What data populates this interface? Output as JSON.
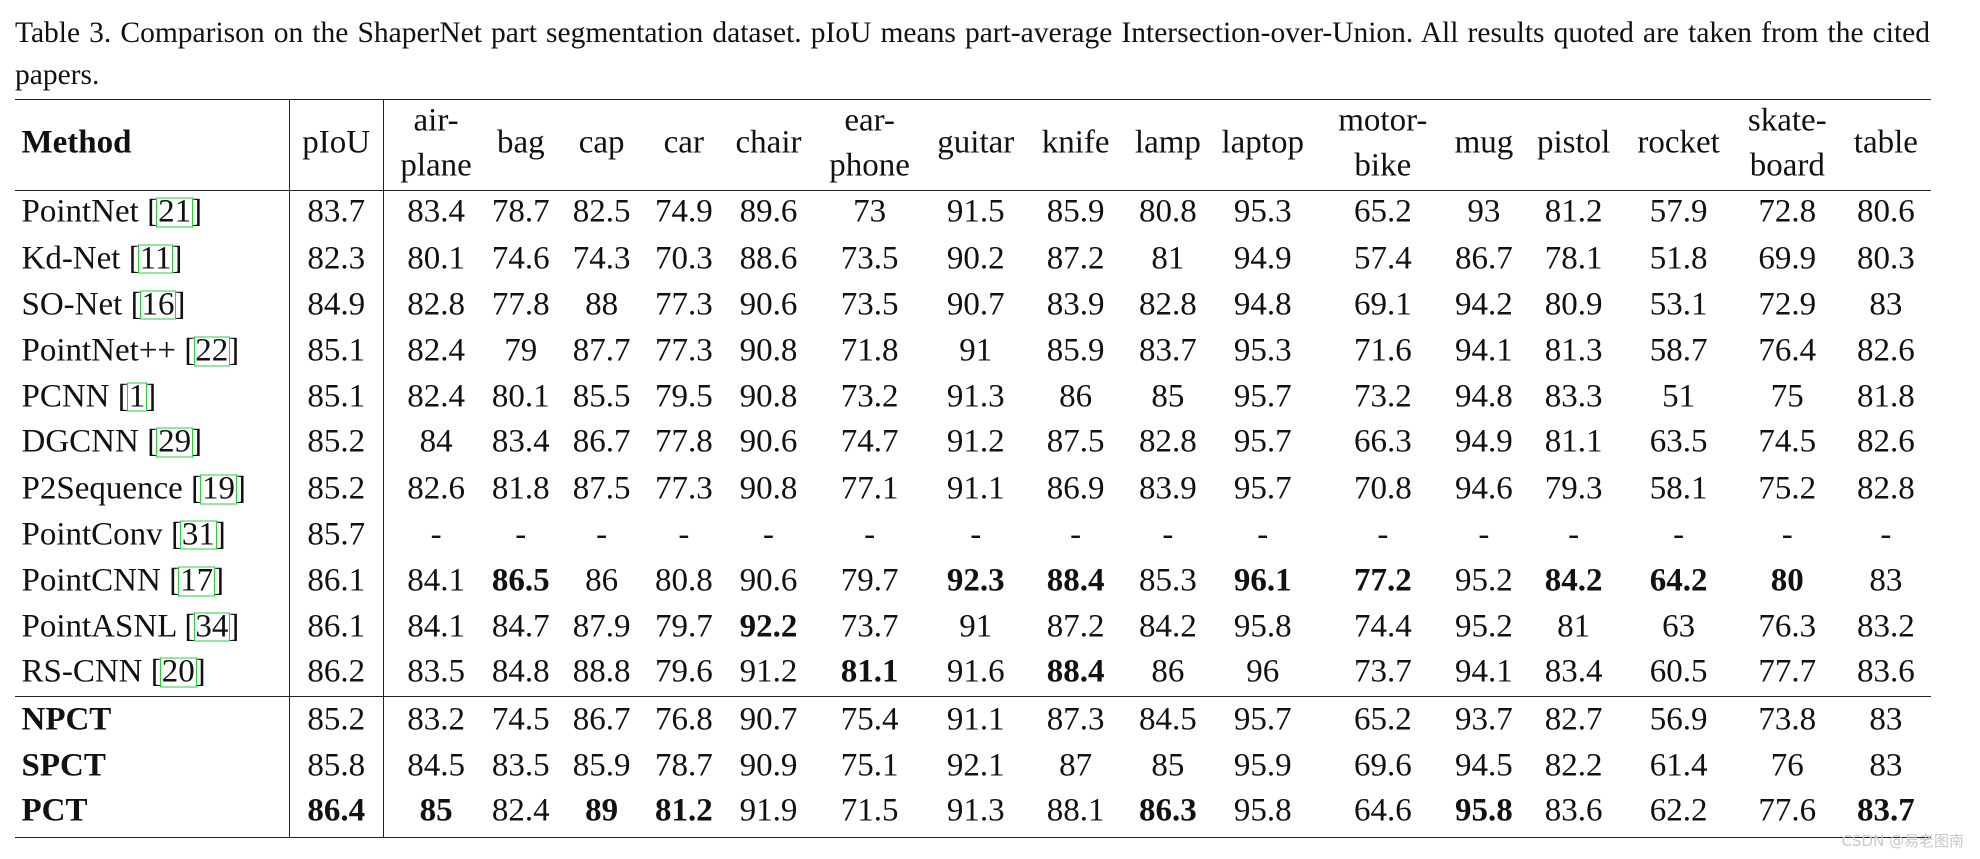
{
  "caption": "Table 3. Comparison on the ShaperNet part segmentation dataset. pIoU means part-average Intersection-over-Union. All results quoted are taken from the cited papers.",
  "table": {
    "header": [
      [
        "Method"
      ],
      [
        "pIoU"
      ],
      [
        "air-",
        "plane"
      ],
      [
        "bag"
      ],
      [
        "cap"
      ],
      [
        "car"
      ],
      [
        "chair"
      ],
      [
        "ear-",
        "phone"
      ],
      [
        "guitar"
      ],
      [
        "knife"
      ],
      [
        "lamp"
      ],
      [
        "laptop"
      ],
      [
        "motor-",
        "bike"
      ],
      [
        "mug"
      ],
      [
        "pistol"
      ],
      [
        "rocket"
      ],
      [
        "skate-",
        "board"
      ],
      [
        "table"
      ]
    ],
    "header_bold": [
      0
    ],
    "rows": [
      {
        "method": "PointNet",
        "ref": "[21]",
        "values": [
          83.7,
          83.4,
          78.7,
          82.5,
          74.9,
          89.6,
          73.0,
          91.5,
          85.9,
          80.8,
          95.3,
          65.2,
          93.0,
          81.2,
          57.9,
          72.8,
          80.6
        ],
        "bold": []
      },
      {
        "method": "Kd-Net",
        "ref": "[11]",
        "values": [
          82.3,
          80.1,
          74.6,
          74.3,
          70.3,
          88.6,
          73.5,
          90.2,
          87.2,
          81.0,
          94.9,
          57.4,
          86.7,
          78.1,
          51.8,
          69.9,
          80.3
        ],
        "bold": []
      },
      {
        "method": "SO-Net",
        "ref": "[16]",
        "values": [
          84.9,
          82.8,
          77.8,
          88.0,
          77.3,
          90.6,
          73.5,
          90.7,
          83.9,
          82.8,
          94.8,
          69.1,
          94.2,
          80.9,
          53.1,
          72.9,
          83.0
        ],
        "bold": []
      },
      {
        "method": "PointNet++",
        "ref": "[22]",
        "values": [
          85.1,
          82.4,
          79.0,
          87.7,
          77.3,
          90.8,
          71.8,
          91.0,
          85.9,
          83.7,
          95.3,
          71.6,
          94.1,
          81.3,
          58.7,
          76.4,
          82.6
        ],
        "bold": []
      },
      {
        "method": "PCNN",
        "ref": "[1]",
        "values": [
          85.1,
          82.4,
          80.1,
          85.5,
          79.5,
          90.8,
          73.2,
          91.3,
          86.0,
          85.0,
          95.7,
          73.2,
          94.8,
          83.3,
          51.0,
          75.0,
          81.8
        ],
        "bold": []
      },
      {
        "method": "DGCNN",
        "ref": "[29]",
        "values": [
          85.2,
          84.0,
          83.4,
          86.7,
          77.8,
          90.6,
          74.7,
          91.2,
          87.5,
          82.8,
          95.7,
          66.3,
          94.9,
          81.1,
          63.5,
          74.5,
          82.6
        ],
        "bold": []
      },
      {
        "method": "P2Sequence",
        "ref": "[19]",
        "values": [
          85.2,
          82.6,
          81.8,
          87.5,
          77.3,
          90.8,
          77.1,
          91.1,
          86.9,
          83.9,
          95.7,
          70.8,
          94.6,
          79.3,
          58.1,
          75.2,
          82.8
        ],
        "bold": []
      },
      {
        "method": "PointConv",
        "ref": "[31]",
        "values": [
          85.7,
          "-",
          "-",
          "-",
          "-",
          "-",
          "-",
          "-",
          "-",
          "-",
          "-",
          "-",
          "-",
          "-",
          "-",
          "-",
          "-"
        ],
        "bold": []
      },
      {
        "method": "PointCNN",
        "ref": "[17]",
        "values": [
          86.1,
          84.1,
          86.5,
          86.0,
          80.8,
          90.6,
          79.7,
          92.3,
          88.4,
          85.3,
          96.1,
          77.2,
          95.2,
          84.2,
          64.2,
          80.0,
          83.0
        ],
        "bold": [
          2,
          7,
          8,
          10,
          11,
          13,
          14,
          15
        ]
      },
      {
        "method": "PointASNL",
        "ref": "[34]",
        "values": [
          86.1,
          84.1,
          84.7,
          87.9,
          79.7,
          92.2,
          73.7,
          91.0,
          87.2,
          84.2,
          95.8,
          74.4,
          95.2,
          81.0,
          63.0,
          76.3,
          83.2
        ],
        "bold": [
          5
        ]
      },
      {
        "method": "RS-CNN",
        "ref": "[20]",
        "values": [
          86.2,
          83.5,
          84.8,
          88.8,
          79.6,
          91.2,
          81.1,
          91.6,
          88.4,
          86.0,
          96.0,
          73.7,
          94.1,
          83.4,
          60.5,
          77.7,
          83.6
        ],
        "bold": [
          6,
          8
        ]
      },
      {
        "method": "NPCT",
        "values": [
          85.2,
          83.2,
          74.5,
          86.7,
          76.8,
          90.7,
          75.4,
          91.1,
          87.3,
          84.5,
          95.7,
          65.2,
          93.7,
          82.7,
          56.9,
          73.8,
          83.0
        ],
        "bold": [],
        "method_bold": true
      },
      {
        "method": "SPCT",
        "values": [
          85.8,
          84.5,
          83.5,
          85.9,
          78.7,
          90.9,
          75.1,
          92.1,
          87.0,
          85.0,
          95.9,
          69.6,
          94.5,
          82.2,
          61.4,
          76.0,
          83.0
        ],
        "bold": [],
        "method_bold": true
      },
      {
        "method": "PCT",
        "values": [
          86.4,
          85.0,
          82.4,
          89.0,
          81.2,
          91.9,
          71.5,
          91.3,
          88.1,
          86.3,
          95.8,
          64.6,
          95.8,
          83.6,
          62.2,
          77.6,
          83.7
        ],
        "bold": [
          0,
          1,
          3,
          4,
          9,
          12,
          16
        ],
        "method_bold": true
      }
    ]
  },
  "watermark": "CSDN @易老图南"
}
